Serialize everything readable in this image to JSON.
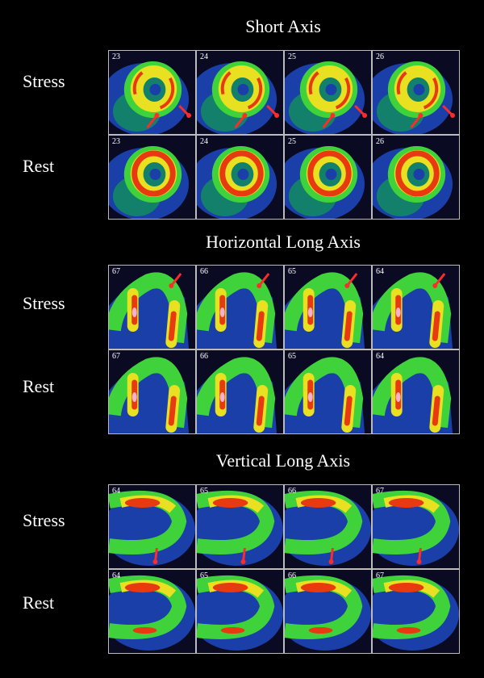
{
  "sections": [
    {
      "title": "Short Axis",
      "view": "short",
      "rows": [
        {
          "label": "Stress",
          "slices": [
            "23",
            "24",
            "25",
            "26"
          ],
          "arrows": true
        },
        {
          "label": "Rest",
          "slices": [
            "23",
            "24",
            "25",
            "26"
          ],
          "arrows": false
        }
      ]
    },
    {
      "title": "Horizontal Long Axis",
      "view": "hla",
      "rows": [
        {
          "label": "Stress",
          "slices": [
            "67",
            "66",
            "65",
            "64"
          ],
          "arrows": true
        },
        {
          "label": "Rest",
          "slices": [
            "67",
            "66",
            "65",
            "64"
          ],
          "arrows": false
        }
      ]
    },
    {
      "title": "Vertical Long Axis",
      "view": "vla",
      "rows": [
        {
          "label": "Stress",
          "slices": [
            "64",
            "65",
            "66",
            "67"
          ],
          "arrows": true
        },
        {
          "label": "Rest",
          "slices": [
            "64",
            "65",
            "66",
            "67"
          ],
          "arrows": false
        }
      ]
    }
  ],
  "colors": {
    "background": "#0a0a22",
    "blue": "#1a3fa8",
    "teal": "#12806a",
    "green": "#3fd23a",
    "yellow": "#e8e020",
    "red": "#e83a10",
    "arrow": "#ff2a2a"
  }
}
